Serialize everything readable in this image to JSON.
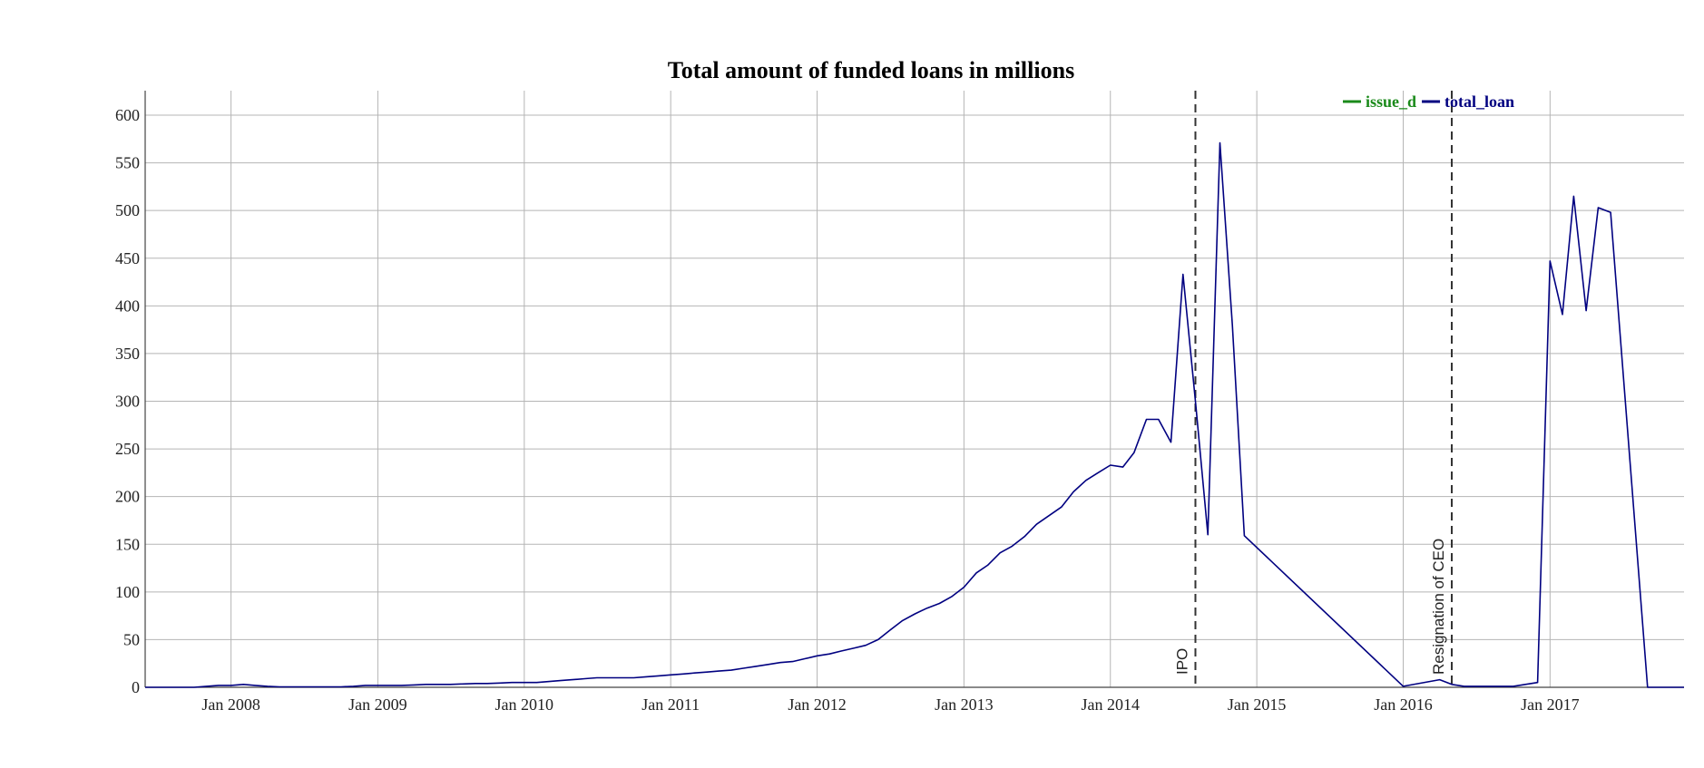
{
  "chart_data": {
    "type": "line",
    "title": "Total amount of funded loans in millions",
    "xlabel": "",
    "ylabel": "",
    "ylim": [
      0,
      600
    ],
    "yticks": [
      0,
      50,
      100,
      150,
      200,
      250,
      300,
      350,
      400,
      450,
      500,
      550,
      600
    ],
    "xlim": [
      "2007-06-01",
      "2017-12-01"
    ],
    "xticks": [
      {
        "date": "2008-01-01",
        "label": "Jan 2008"
      },
      {
        "date": "2009-01-01",
        "label": "Jan 2009"
      },
      {
        "date": "2010-01-01",
        "label": "Jan 2010"
      },
      {
        "date": "2011-01-01",
        "label": "Jan 2011"
      },
      {
        "date": "2012-01-01",
        "label": "Jan 2012"
      },
      {
        "date": "2013-01-01",
        "label": "Jan 2013"
      },
      {
        "date": "2014-01-01",
        "label": "Jan 2014"
      },
      {
        "date": "2015-01-01",
        "label": "Jan 2015"
      },
      {
        "date": "2016-01-01",
        "label": "Jan 2016"
      },
      {
        "date": "2017-01-01",
        "label": "Jan 2017"
      }
    ],
    "grid": true,
    "legend_position": "top-right",
    "legend": [
      {
        "name": "issue_d",
        "color": "#1a8a1a"
      },
      {
        "name": "total_loan",
        "color": "#000080"
      }
    ],
    "annotations": [
      {
        "date": "2014-08-01",
        "label": "IPO"
      },
      {
        "date": "2016-05-01",
        "label": "Resignation of CEO"
      }
    ],
    "series": [
      {
        "name": "total_loan",
        "color": "#000080",
        "points": [
          [
            "2007-06-01",
            0
          ],
          [
            "2007-07-01",
            0
          ],
          [
            "2007-08-01",
            0
          ],
          [
            "2007-09-01",
            0
          ],
          [
            "2007-10-01",
            0
          ],
          [
            "2007-11-01",
            1
          ],
          [
            "2007-12-01",
            2
          ],
          [
            "2008-01-01",
            2
          ],
          [
            "2008-02-01",
            3
          ],
          [
            "2008-03-01",
            2
          ],
          [
            "2008-04-01",
            1
          ],
          [
            "2008-05-01",
            0.5
          ],
          [
            "2008-06-01",
            0.5
          ],
          [
            "2008-07-01",
            0.5
          ],
          [
            "2008-08-01",
            0.5
          ],
          [
            "2008-09-01",
            0.5
          ],
          [
            "2008-10-01",
            0.5
          ],
          [
            "2008-11-01",
            1
          ],
          [
            "2008-12-01",
            2
          ],
          [
            "2009-01-01",
            2
          ],
          [
            "2009-02-01",
            2
          ],
          [
            "2009-03-01",
            2
          ],
          [
            "2009-04-01",
            2.5
          ],
          [
            "2009-05-01",
            3
          ],
          [
            "2009-06-01",
            3
          ],
          [
            "2009-07-01",
            3
          ],
          [
            "2009-08-01",
            3.5
          ],
          [
            "2009-09-01",
            4
          ],
          [
            "2009-10-01",
            4
          ],
          [
            "2009-11-01",
            4.5
          ],
          [
            "2009-12-01",
            5
          ],
          [
            "2010-01-01",
            5
          ],
          [
            "2010-02-01",
            5
          ],
          [
            "2010-03-01",
            6
          ],
          [
            "2010-04-01",
            7
          ],
          [
            "2010-05-01",
            8
          ],
          [
            "2010-06-01",
            9
          ],
          [
            "2010-07-01",
            10
          ],
          [
            "2010-08-01",
            10
          ],
          [
            "2010-09-01",
            10
          ],
          [
            "2010-10-01",
            10
          ],
          [
            "2010-11-01",
            11
          ],
          [
            "2010-12-01",
            12
          ],
          [
            "2011-01-01",
            13
          ],
          [
            "2011-02-01",
            14
          ],
          [
            "2011-03-01",
            15
          ],
          [
            "2011-04-01",
            16
          ],
          [
            "2011-05-01",
            17
          ],
          [
            "2011-06-01",
            18
          ],
          [
            "2011-07-01",
            20
          ],
          [
            "2011-08-01",
            22
          ],
          [
            "2011-09-01",
            24
          ],
          [
            "2011-10-01",
            26
          ],
          [
            "2011-11-01",
            27
          ],
          [
            "2011-12-01",
            30
          ],
          [
            "2012-01-01",
            33
          ],
          [
            "2012-02-01",
            35
          ],
          [
            "2012-03-01",
            38
          ],
          [
            "2012-04-01",
            41
          ],
          [
            "2012-05-01",
            44
          ],
          [
            "2012-06-01",
            50
          ],
          [
            "2012-07-01",
            60
          ],
          [
            "2012-08-01",
            70
          ],
          [
            "2012-09-01",
            77
          ],
          [
            "2012-10-01",
            83
          ],
          [
            "2012-11-01",
            88
          ],
          [
            "2012-12-01",
            95
          ],
          [
            "2013-01-01",
            105
          ],
          [
            "2013-02-01",
            120
          ],
          [
            "2013-03-01",
            128
          ],
          [
            "2013-04-01",
            141
          ],
          [
            "2013-05-01",
            148
          ],
          [
            "2013-06-01",
            158
          ],
          [
            "2013-07-01",
            171
          ],
          [
            "2013-08-01",
            180
          ],
          [
            "2013-09-01",
            189
          ],
          [
            "2013-10-01",
            205
          ],
          [
            "2013-11-01",
            217
          ],
          [
            "2013-12-01",
            225
          ],
          [
            "2014-01-01",
            233
          ],
          [
            "2014-02-01",
            231
          ],
          [
            "2014-03-01",
            246
          ],
          [
            "2014-04-01",
            281
          ],
          [
            "2014-05-01",
            281
          ],
          [
            "2014-06-01",
            257
          ],
          [
            "2014-07-01",
            433
          ],
          [
            "2014-08-01",
            300
          ],
          [
            "2014-09-01",
            160
          ],
          [
            "2014-10-01",
            571
          ],
          [
            "2014-11-01",
            380
          ],
          [
            "2014-12-01",
            159
          ],
          [
            "2016-01-01",
            1
          ],
          [
            "2016-04-01",
            8
          ],
          [
            "2016-05-01",
            3
          ],
          [
            "2016-06-01",
            1
          ],
          [
            "2016-10-01",
            1
          ],
          [
            "2016-12-01",
            5
          ],
          [
            "2017-01-01",
            447
          ],
          [
            "2017-02-01",
            391
          ],
          [
            "2017-03-01",
            515
          ],
          [
            "2017-04-01",
            395
          ],
          [
            "2017-05-01",
            503
          ],
          [
            "2017-06-01",
            498
          ],
          [
            "2017-09-01",
            0
          ],
          [
            "2017-12-01",
            0
          ]
        ]
      }
    ]
  }
}
